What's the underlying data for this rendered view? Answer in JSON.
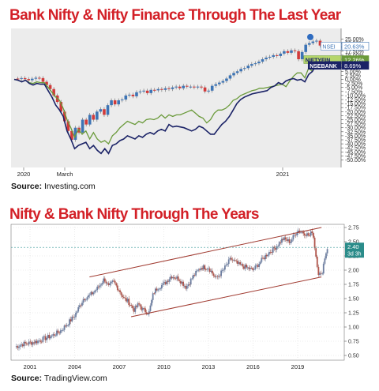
{
  "chart1": {
    "title": "Bank Nifty & Nifty Finance Through The Last Year",
    "source_label": "Source:",
    "source_name": "Investing.com",
    "chart_data": {
      "type": "line",
      "x_tick_labels": [
        "2020",
        "March",
        "2021"
      ],
      "y_ticks": [
        "25.00%",
        "22.50%",
        "20.00%",
        "17.50%",
        "15.00%",
        "12.50%",
        "10.00%",
        "7.50%",
        "5.00%",
        "2.50%",
        "0.00%",
        "-2.50%",
        "-5.00%",
        "-7.50%",
        "-10.00%",
        "-12.50%",
        "-15.00%",
        "-17.50%",
        "-20.00%",
        "-22.50%",
        "-25.00%",
        "-27.50%",
        "-30.00%",
        "-32.50%",
        "-35.00%",
        "-37.50%",
        "-40.00%",
        "-42.50%",
        "-45.00%",
        "-47.50%",
        "-50.00%"
      ],
      "ylim": [
        -50,
        25
      ],
      "series": [
        {
          "name": "NSEI",
          "last_label": "20.63%",
          "color": "#3d74b5",
          "kind": "candlestick",
          "values": [
            0.5,
            0.3,
            0.8,
            0.2,
            -0.5,
            0.4,
            1.0,
            0.8,
            -1.5,
            -3.5,
            -6.0,
            -10.0,
            -14.0,
            -20.0,
            -26.0,
            -32.0,
            -37.5,
            -30.0,
            -33.0,
            -25.0,
            -28.0,
            -22.0,
            -25.0,
            -20.0,
            -18.5,
            -22.0,
            -16.0,
            -13.0,
            -15.5,
            -13.0,
            -12.5,
            -10.0,
            -9.5,
            -10.5,
            -8.0,
            -7.5,
            -7.0,
            -8.5,
            -6.5,
            -6.8,
            -6.0,
            -6.5,
            -5.5,
            -6.0,
            -5.0,
            -4.5,
            -5.5,
            -4.0,
            -4.5,
            -4.5,
            -5.0,
            -4.5,
            -5.0,
            -7.5,
            -7.0,
            -4.0,
            -3.0,
            -2.0,
            -1.0,
            0.5,
            2.5,
            4.0,
            5.0,
            6.5,
            7.0,
            8.5,
            9.5,
            10.0,
            11.0,
            12.5,
            13.5,
            14.0,
            15.0,
            14.5,
            16.0,
            17.5,
            16.5,
            18.0,
            17.5,
            12.5,
            17.0,
            21.5,
            22.5,
            23.5,
            24.0,
            21.0,
            20.63
          ]
        },
        {
          "name": "NIFTYFIN",
          "last_label": "12.26%",
          "color": "#6a9a3a",
          "kind": "line",
          "values": [
            0,
            -0.5,
            -1.5,
            -0.5,
            -2,
            -2.5,
            -1.5,
            -2,
            -2,
            -5,
            -8,
            -11,
            -13,
            -18,
            -25,
            -30,
            -36,
            -31,
            -34,
            -32,
            -37,
            -33,
            -37,
            -39,
            -38,
            -40,
            -35,
            -33,
            -30,
            -28,
            -26,
            -27,
            -28,
            -26,
            -27,
            -25,
            -24.5,
            -25,
            -24,
            -22,
            -24,
            -22,
            -23,
            -22,
            -22,
            -21,
            -20,
            -19,
            -21,
            -23,
            -24,
            -27,
            -25,
            -21,
            -19,
            -19,
            -18,
            -16,
            -13,
            -12,
            -10,
            -9,
            -8,
            -7,
            -6.5,
            -5.5,
            -5.5,
            -5,
            -4.5,
            -4,
            -3.5,
            -3,
            -4.5,
            -1,
            2,
            4,
            4,
            1,
            7,
            5,
            13,
            13,
            12.26
          ]
        },
        {
          "name": "NSEBANK",
          "last_label": "8.69%",
          "color": "#1a2266",
          "kind": "line",
          "values": [
            0,
            -0.5,
            -1.5,
            -0.5,
            -2.5,
            -3.5,
            -2.5,
            -3,
            -3,
            -7,
            -11,
            -16,
            -19,
            -23,
            -32,
            -37,
            -43,
            -41,
            -40,
            -39,
            -43,
            -41,
            -44,
            -46,
            -43,
            -46,
            -41,
            -40,
            -38,
            -37,
            -35,
            -36,
            -37,
            -35,
            -36,
            -34,
            -33,
            -34,
            -32,
            -31,
            -32,
            -28,
            -29.5,
            -29,
            -29.5,
            -30,
            -31,
            -32,
            -31,
            -29,
            -30,
            -32,
            -34,
            -34,
            -31,
            -28,
            -26,
            -23,
            -19,
            -15,
            -12.5,
            -11,
            -10,
            -9,
            -8.5,
            -8,
            -7.5,
            -7,
            -5,
            -4,
            -2,
            -3,
            -1,
            0,
            0.5,
            -0.5,
            0,
            -1.5,
            3,
            5,
            9,
            9,
            8.69
          ]
        }
      ]
    }
  },
  "chart2": {
    "title": "Nifty & Bank Nifty Through The Years",
    "source_label": "Source:",
    "source_name": "TradingView.com",
    "chart_data": {
      "type": "line",
      "x_tick_labels": [
        "2001",
        "2004",
        "2007",
        "2010",
        "2013",
        "2016",
        "2019"
      ],
      "y_ticks": [
        "2.75",
        "2.50",
        "2.25",
        "2.00",
        "1.75",
        "1.50",
        "1.25",
        "1.00",
        "0.75",
        "0.50"
      ],
      "ylim": [
        0.5,
        2.75
      ],
      "last_value_label": "2.40",
      "countdown_label": "3d 3h",
      "series": [
        {
          "name": "",
          "color": "#5a6b8c",
          "kind": "candlestick",
          "x": [
            2000.0,
            2000.5,
            2001.0,
            2001.5,
            2002.0,
            2002.5,
            2003.0,
            2003.5,
            2004.0,
            2004.3,
            2004.6,
            2005.0,
            2005.3,
            2005.6,
            2006.0,
            2006.3,
            2006.6,
            2007.0,
            2007.3,
            2007.6,
            2008.0,
            2008.3,
            2008.6,
            2009.0,
            2009.3,
            2009.6,
            2010.0,
            2010.5,
            2011.0,
            2011.5,
            2012.0,
            2012.5,
            2013.0,
            2013.5,
            2014.0,
            2014.5,
            2015.0,
            2015.5,
            2016.0,
            2016.5,
            2017.0,
            2017.5,
            2018.0,
            2018.5,
            2019.0,
            2019.5,
            2019.8,
            2020.0,
            2020.2,
            2020.4,
            2020.6,
            2020.8,
            2021.0
          ],
          "values": [
            0.65,
            0.7,
            0.72,
            0.75,
            0.8,
            0.85,
            0.92,
            1.05,
            1.2,
            1.35,
            1.5,
            1.55,
            1.62,
            1.7,
            1.85,
            1.7,
            1.8,
            1.65,
            1.5,
            1.45,
            1.3,
            1.4,
            1.3,
            1.25,
            1.6,
            1.7,
            1.75,
            1.9,
            1.85,
            1.7,
            1.9,
            2.05,
            2.05,
            1.85,
            2.0,
            2.2,
            2.1,
            2.05,
            2.0,
            2.15,
            2.3,
            2.4,
            2.55,
            2.5,
            2.7,
            2.65,
            2.6,
            2.7,
            2.3,
            1.95,
            1.9,
            2.2,
            2.4
          ]
        },
        {
          "name": "",
          "color": "#a03a30",
          "kind": "trendline",
          "x": [
            2005.0,
            2020.6
          ],
          "values": [
            1.88,
            2.75
          ]
        },
        {
          "name": "",
          "color": "#a03a30",
          "kind": "trendline",
          "x": [
            2007.8,
            2020.6
          ],
          "values": [
            1.18,
            1.88
          ]
        }
      ]
    }
  }
}
